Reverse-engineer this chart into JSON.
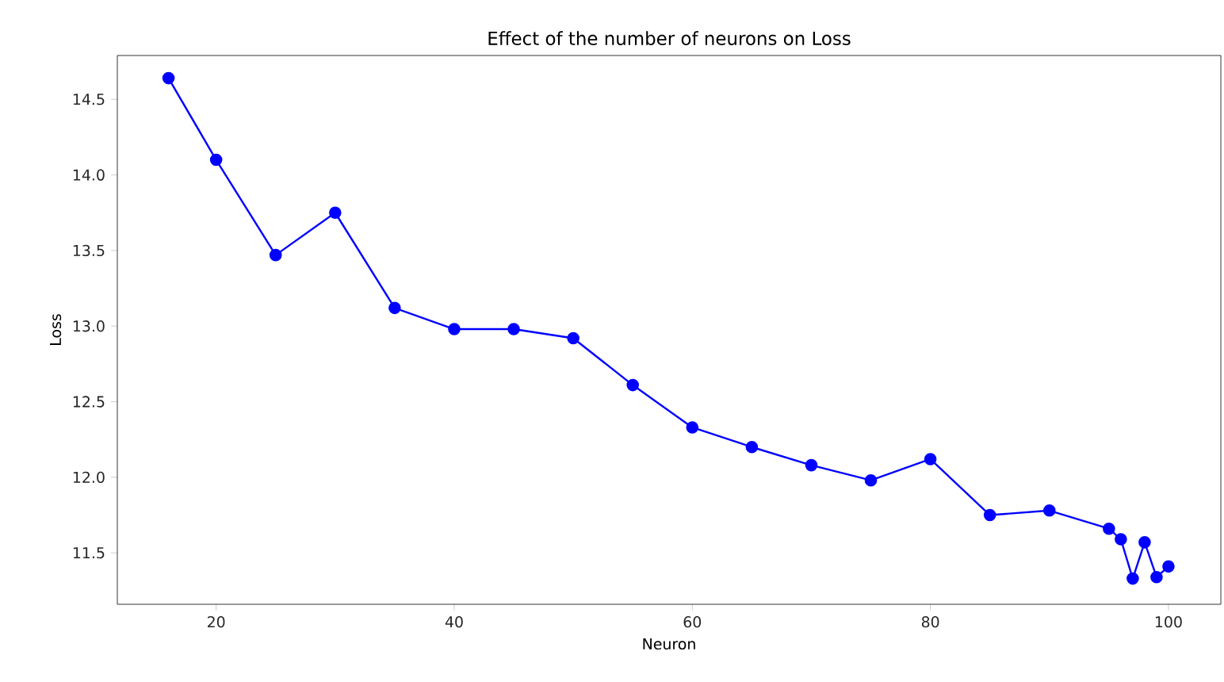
{
  "chart_data": {
    "type": "line",
    "title": "Effect of the number of neurons on Loss",
    "xlabel": "Neuron",
    "ylabel": "Loss",
    "x": [
      16,
      20,
      25,
      30,
      35,
      40,
      45,
      50,
      55,
      60,
      65,
      70,
      75,
      80,
      85,
      90,
      95,
      96,
      97,
      98,
      99,
      100
    ],
    "series": [
      {
        "color": "#0000ff",
        "values": [
          14.64,
          14.1,
          13.47,
          13.75,
          13.12,
          12.98,
          12.98,
          12.92,
          12.61,
          12.33,
          12.2,
          12.08,
          11.98,
          12.12,
          11.75,
          11.78,
          11.66,
          11.59,
          11.33,
          11.57,
          11.34,
          11.41
        ]
      }
    ],
    "xlim": [
      11.7,
      104.4
    ],
    "ylim": [
      11.16,
      14.79
    ],
    "xticks": [
      20,
      40,
      60,
      80,
      100
    ],
    "yticks": [
      11.5,
      {
        "value": 12,
        "label": "12.0"
      },
      12.5,
      {
        "value": 13,
        "label": "13.0"
      },
      13.5,
      {
        "value": 14,
        "label": "14.0"
      },
      14.5
    ],
    "marker": "circle",
    "line_style": "solid"
  }
}
